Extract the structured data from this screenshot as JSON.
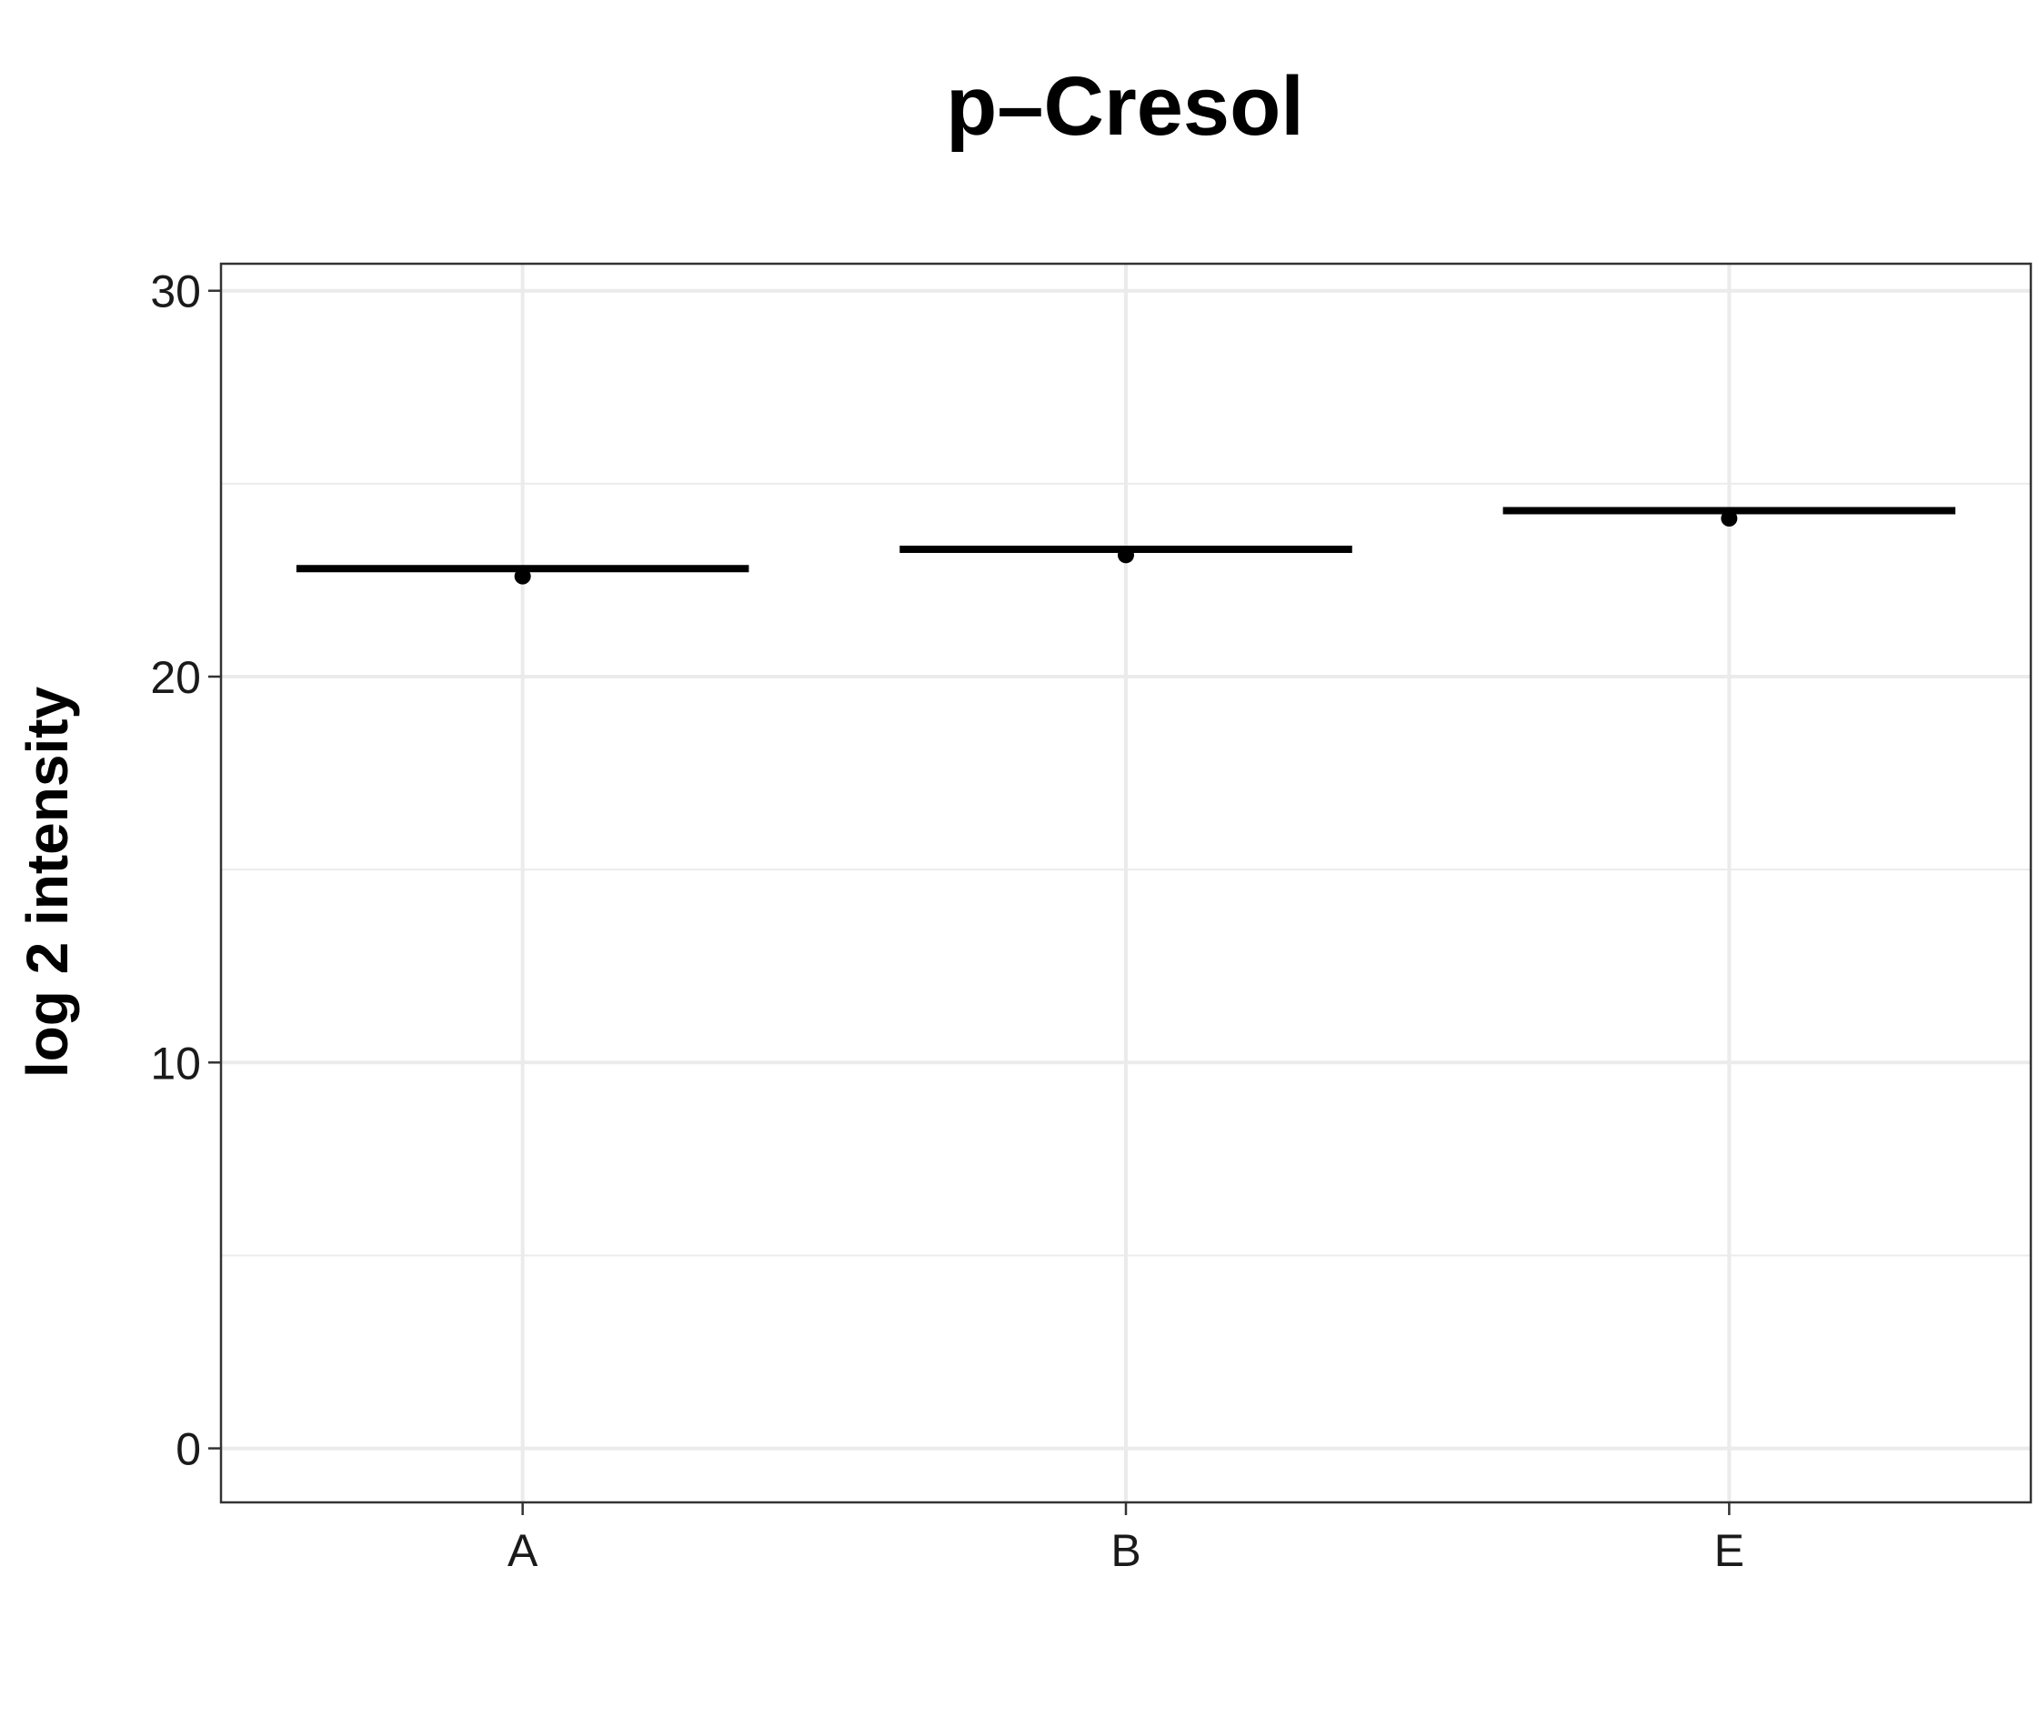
{
  "chart_data": {
    "type": "boxplot",
    "title": "p–Cresol",
    "xlabel": "",
    "ylabel": "log 2 intensity",
    "categories": [
      "A",
      "B",
      "E"
    ],
    "medians": [
      22.8,
      23.3,
      24.3
    ],
    "points": [
      22.6,
      23.15,
      24.1
    ],
    "ylim": [
      -1.4,
      30.7
    ],
    "yticks": [
      0,
      10,
      20,
      30
    ],
    "grid": true,
    "legend": "none"
  },
  "colors": {
    "background": "#ffffff",
    "grid": "#ebebeb",
    "border": "#333333",
    "marks": "#000000"
  }
}
